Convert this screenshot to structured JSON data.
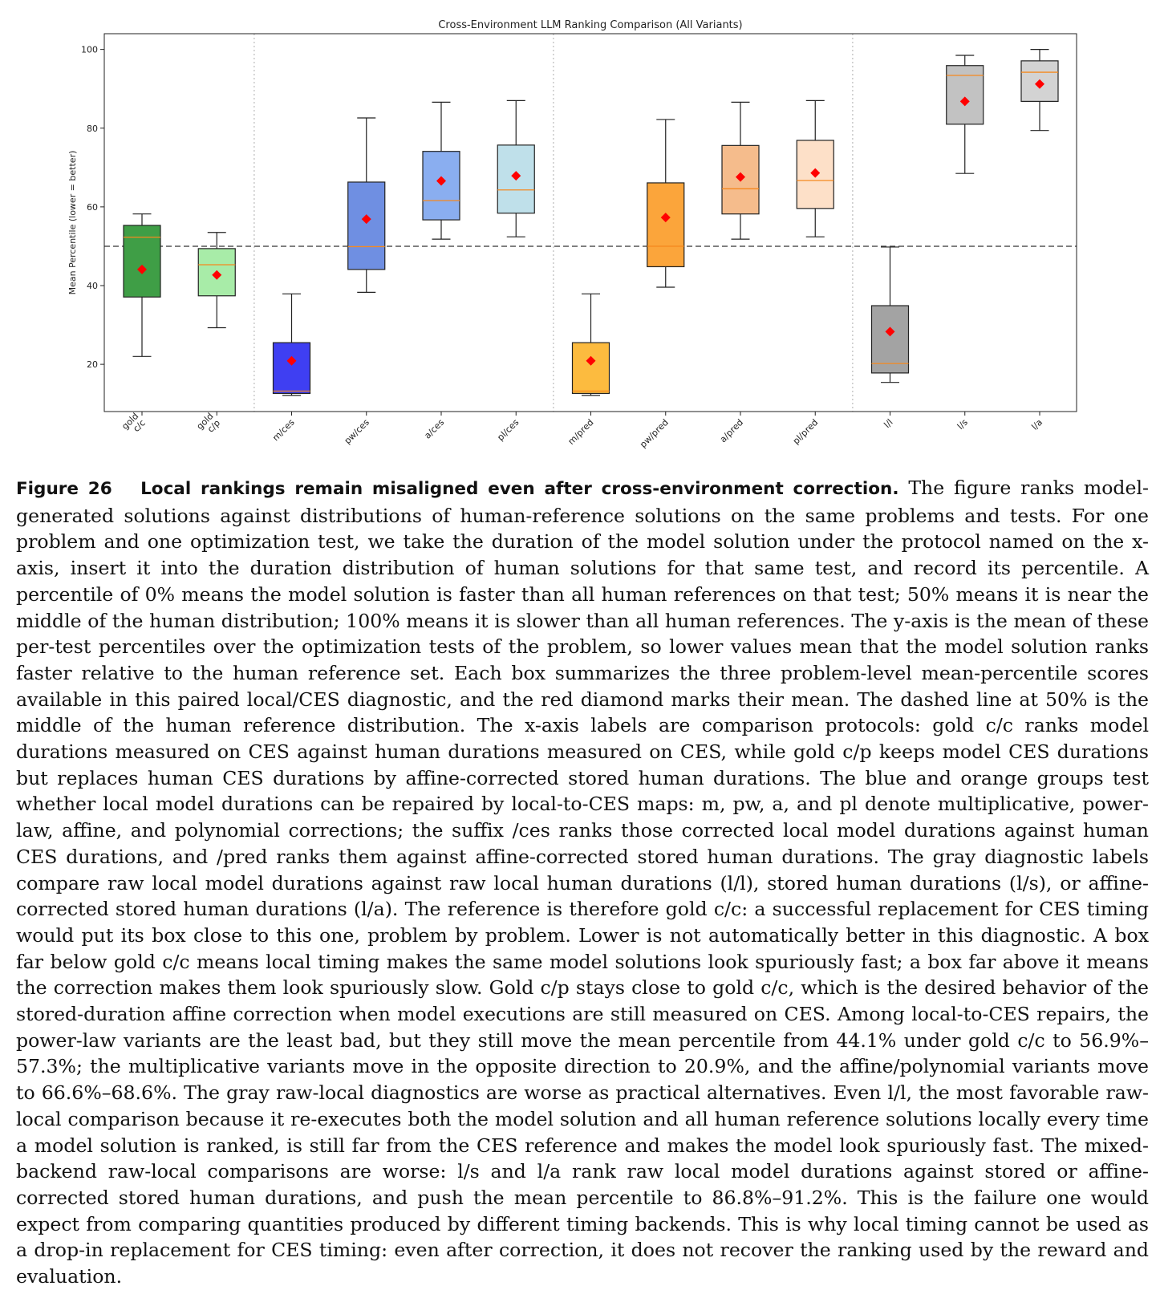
{
  "chart_data": {
    "type": "box",
    "title": "Cross-Environment LLM Ranking Comparison (All Variants)",
    "xlabel": "",
    "ylabel": "Mean Percentile (lower = better)",
    "ylim": [
      8,
      104
    ],
    "yticks": [
      20,
      40,
      60,
      80,
      100
    ],
    "reference_line": 50,
    "group_separators_after": [
      2,
      6,
      10
    ],
    "grid": false,
    "categories": [
      "gold\nc/c",
      "gold\nc/p",
      "m/ces",
      "pw/ces",
      "a/ces",
      "pl/ces",
      "m/pred",
      "pw/pred",
      "a/pred",
      "pl/pred",
      "l/l",
      "l/s",
      "l/a"
    ],
    "boxes": [
      {
        "label": "gold\nc/c",
        "whisker_low": 22,
        "q1": 37.1,
        "median": 52.3,
        "q3": 55.3,
        "whisker_high": 58.2,
        "mean": 44.1,
        "color": "#3f9e46"
      },
      {
        "label": "gold\nc/p",
        "whisker_low": 29.3,
        "q1": 37.4,
        "median": 45.3,
        "q3": 49.4,
        "whisker_high": 53.5,
        "mean": 42.7,
        "color": "#a8eca8"
      },
      {
        "label": "m/ces",
        "whisker_low": 12.1,
        "q1": 12.6,
        "median": 13.2,
        "q3": 25.5,
        "whisker_high": 37.9,
        "mean": 20.9,
        "color": "#3f3ff2"
      },
      {
        "label": "pw/ces",
        "whisker_low": 38.3,
        "q1": 44.1,
        "median": 49.9,
        "q3": 66.3,
        "whisker_high": 82.6,
        "mean": 56.9,
        "color": "#6f8fe2"
      },
      {
        "label": "a/ces",
        "whisker_low": 51.8,
        "q1": 56.7,
        "median": 61.6,
        "q3": 74.1,
        "whisker_high": 86.6,
        "mean": 66.6,
        "color": "#8aaef0"
      },
      {
        "label": "pl/ces",
        "whisker_low": 52.4,
        "q1": 58.4,
        "median": 64.3,
        "q3": 75.7,
        "whisker_high": 87.0,
        "mean": 67.9,
        "color": "#bfe0ea"
      },
      {
        "label": "m/pred",
        "whisker_low": 12.1,
        "q1": 12.6,
        "median": 13.2,
        "q3": 25.5,
        "whisker_high": 37.9,
        "mean": 20.9,
        "color": "#fcbb3f"
      },
      {
        "label": "pw/pred",
        "whisker_low": 39.6,
        "q1": 44.8,
        "median": 50.0,
        "q3": 66.1,
        "whisker_high": 82.2,
        "mean": 57.3,
        "color": "#fba53b"
      },
      {
        "label": "a/pred",
        "whisker_low": 51.8,
        "q1": 58.2,
        "median": 64.6,
        "q3": 75.6,
        "whisker_high": 86.6,
        "mean": 67.6,
        "color": "#f5bc8c"
      },
      {
        "label": "pl/pred",
        "whisker_low": 52.4,
        "q1": 59.6,
        "median": 66.7,
        "q3": 76.9,
        "whisker_high": 87.0,
        "mean": 68.6,
        "color": "#fde0c8"
      },
      {
        "label": "l/l",
        "whisker_low": 15.4,
        "q1": 17.8,
        "median": 20.2,
        "q3": 34.9,
        "whisker_high": 49.8,
        "mean": 28.3,
        "color": "#a3a3a3"
      },
      {
        "label": "l/s",
        "whisker_low": 68.5,
        "q1": 81.0,
        "median": 93.4,
        "q3": 95.9,
        "whisker_high": 98.5,
        "mean": 86.8,
        "color": "#c2c2c2"
      },
      {
        "label": "l/a",
        "whisker_low": 79.4,
        "q1": 86.8,
        "median": 94.2,
        "q3": 97.1,
        "whisker_high": 100.0,
        "mean": 91.2,
        "color": "#d3d3d3"
      }
    ],
    "colors": {
      "median": "#f5891f",
      "mean_marker": "#ff0000",
      "whisker": "#222222",
      "reference_line": "#555555",
      "separator": "#bbbbbb"
    }
  },
  "caption": {
    "figure_label": "Figure 26",
    "figure_title": "Local rankings remain misaligned even after cross-environment correction.",
    "body": "The figure ranks model-generated solutions against distributions of human-reference solutions on the same problems and tests. For one problem and one optimization test, we take the duration of the model solution under the protocol named on the x-axis, insert it into the duration distribution of human solutions for that same test, and record its percentile. A percentile of 0% means the model solution is faster than all human references on that test; 50% means it is near the middle of the human distribution; 100% means it is slower than all human references. The y-axis is the mean of these per-test percentiles over the optimization tests of the problem, so lower values mean that the model solution ranks faster relative to the human reference set. Each box summarizes the three problem-level mean-percentile scores available in this paired local/CES diagnostic, and the red diamond marks their mean. The dashed line at 50% is the middle of the human reference distribution. The x-axis labels are comparison protocols: gold c/c ranks model durations measured on CES against human durations measured on CES, while gold c/p keeps model CES durations but replaces human CES durations by affine-corrected stored human durations. The blue and orange groups test whether local model durations can be repaired by local-to-CES maps: m, pw, a, and pl denote multiplicative, power-law, affine, and polynomial corrections; the suffix /ces ranks those corrected local model durations against human CES durations, and /pred ranks them against affine-corrected stored human durations. The gray diagnostic labels compare raw local model durations against raw local human durations (l/l), stored human durations (l/s), or affine-corrected stored human durations (l/a). The reference is therefore gold c/c: a successful replacement for CES timing would put its box close to this one, problem by problem. Lower is not automatically better in this diagnostic. A box far below gold c/c means local timing makes the same model solutions look spuriously fast; a box far above it means the correction makes them look spuriously slow. Gold c/p stays close to gold c/c, which is the desired behavior of the stored-duration affine correction when model executions are still measured on CES. Among local-to-CES repairs, the power-law variants are the least bad, but they still move the mean percentile from 44.1% under gold c/c to 56.9%–57.3%; the multiplicative variants move in the opposite direction to 20.9%, and the affine/polynomial variants move to 66.6%–68.6%. The gray raw-local diagnostics are worse as practical alternatives. Even l/l, the most favorable raw-local comparison because it re-executes both the model solution and all human reference solutions locally every time a model solution is ranked, is still far from the CES reference and makes the model look spuriously fast. The mixed-backend raw-local comparisons are worse: l/s and l/a rank raw local model durations against stored or affine-corrected stored human durations, and push the mean percentile to 86.8%–91.2%. This is the failure one would expect from comparing quantities produced by different timing backends. This is why local timing cannot be used as a drop-in replacement for CES timing: even after correction, it does not recover the ranking used by the reward and evaluation."
  }
}
